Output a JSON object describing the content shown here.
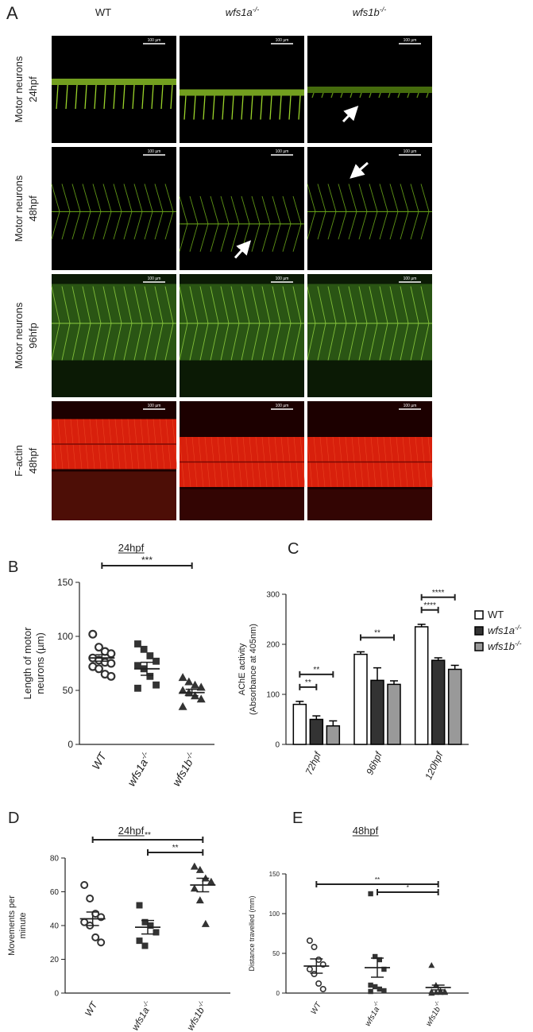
{
  "panel_a": {
    "label": "A",
    "columns": [
      {
        "name": "WT"
      },
      {
        "name": "wfs1a",
        "sup": "-/-"
      },
      {
        "name": "wfs1b",
        "sup": "-/-"
      }
    ],
    "rows": [
      {
        "lines": [
          "Motor neurons",
          "24hpf"
        ]
      },
      {
        "lines": [
          "Motor neurons",
          "48hpf"
        ]
      },
      {
        "lines": [
          "Motor neurons",
          "96hfp"
        ]
      },
      {
        "lines": [
          "F-actin",
          "48hpf"
        ]
      }
    ],
    "scale_bar": "100 µm"
  },
  "chart_data": [
    {
      "type": "dotplot",
      "label": "B",
      "title": "24hpf",
      "ylabel": [
        "Length of motor",
        "neurons (µm)"
      ],
      "ylim": [
        0,
        150
      ],
      "yticks": [
        0,
        50,
        100,
        150
      ],
      "series": [
        {
          "name": "WT",
          "marker": "circle-open",
          "values": [
            102,
            90,
            86,
            84,
            80,
            78,
            76,
            75,
            72,
            70,
            65,
            63
          ],
          "mean": 80,
          "sem": 3
        },
        {
          "name": "wfs1a",
          "sup": "-/-",
          "marker": "square",
          "values": [
            93,
            88,
            82,
            77,
            73,
            70,
            63,
            55,
            52
          ],
          "mean": 70,
          "sem": 6
        },
        {
          "name": "wfs1b",
          "sup": "-/-",
          "marker": "triangle",
          "values": [
            62,
            58,
            55,
            53,
            50,
            48,
            45,
            42,
            35
          ],
          "mean": 48,
          "sem": 3
        }
      ],
      "brackets": [
        {
          "from": 0,
          "to": 2,
          "label": "***"
        }
      ]
    },
    {
      "type": "bar",
      "label": "C",
      "ylabel": [
        "AChE activity",
        "(Absorbance at 405nm)"
      ],
      "ylim": [
        0,
        300
      ],
      "yticks": [
        0,
        100,
        200,
        300
      ],
      "categories": [
        "72hpf",
        "96hpf",
        "120hpf"
      ],
      "series": [
        {
          "name": "WT",
          "color": "#ffffff",
          "values": [
            80,
            180,
            235
          ],
          "errors": [
            6,
            5,
            5
          ]
        },
        {
          "name": "wfs1a",
          "sup": "-/-",
          "color": "#333333",
          "values": [
            50,
            128,
            168
          ],
          "errors": [
            7,
            25,
            5
          ]
        },
        {
          "name": "wfs1b",
          "sup": "-/-",
          "color": "#999999",
          "values": [
            37,
            120,
            150
          ],
          "errors": [
            10,
            7,
            8
          ]
        }
      ],
      "brackets": [
        {
          "category": 0,
          "from": 0,
          "to": 1,
          "label": "**"
        },
        {
          "category": 0,
          "from": 0,
          "to": 2,
          "label": "**"
        },
        {
          "category": 1,
          "from": 0,
          "to": 2,
          "label": "**"
        },
        {
          "category": 2,
          "from": 0,
          "to": 1,
          "label": "****"
        },
        {
          "category": 2,
          "from": 0,
          "to": 2,
          "label": "****"
        }
      ]
    },
    {
      "type": "dotplot",
      "label": "D",
      "title": "24hpf",
      "ylabel": [
        "Movements per",
        "minute"
      ],
      "ylim": [
        0,
        80
      ],
      "yticks": [
        0,
        20,
        40,
        60,
        80
      ],
      "series": [
        {
          "name": "WT",
          "marker": "circle-open",
          "values": [
            64,
            56,
            47,
            45,
            42,
            40,
            33,
            30
          ],
          "mean": 44,
          "sem": 4
        },
        {
          "name": "wfs1a",
          "sup": "-/-",
          "marker": "square",
          "values": [
            52,
            42,
            40,
            36,
            31,
            28
          ],
          "mean": 39,
          "sem": 4
        },
        {
          "name": "wfs1b",
          "sup": "-/-",
          "marker": "triangle",
          "values": [
            75,
            73,
            68,
            66,
            62,
            55,
            41
          ],
          "mean": 64,
          "sem": 4
        }
      ],
      "brackets": [
        {
          "from": 0,
          "to": 2,
          "label": "**"
        },
        {
          "from": 1,
          "to": 2,
          "label": "**"
        }
      ]
    },
    {
      "type": "dotplot",
      "label": "E",
      "title": "48hpf",
      "ylabel": [
        "Distance travelled (mm)"
      ],
      "ylim": [
        0,
        150
      ],
      "yticks": [
        0,
        50,
        100,
        150
      ],
      "series": [
        {
          "name": "WT",
          "marker": "circle-open",
          "values": [
            66,
            58,
            42,
            36,
            30,
            24,
            12,
            5
          ],
          "mean": 34,
          "sem": 9
        },
        {
          "name": "wfs1a",
          "sup": "-/-",
          "marker": "square",
          "values": [
            125,
            46,
            42,
            30,
            10,
            8,
            5,
            3,
            2
          ],
          "mean": 32,
          "sem": 12
        },
        {
          "name": "wfs1b",
          "sup": "-/-",
          "marker": "triangle",
          "values": [
            35,
            10,
            3,
            2,
            2,
            1,
            1,
            1,
            0
          ],
          "mean": 7,
          "sem": 3
        }
      ],
      "brackets": [
        {
          "from": 0,
          "to": 2,
          "label": "**"
        },
        {
          "from": 1,
          "to": 2,
          "label": "*"
        }
      ]
    }
  ]
}
